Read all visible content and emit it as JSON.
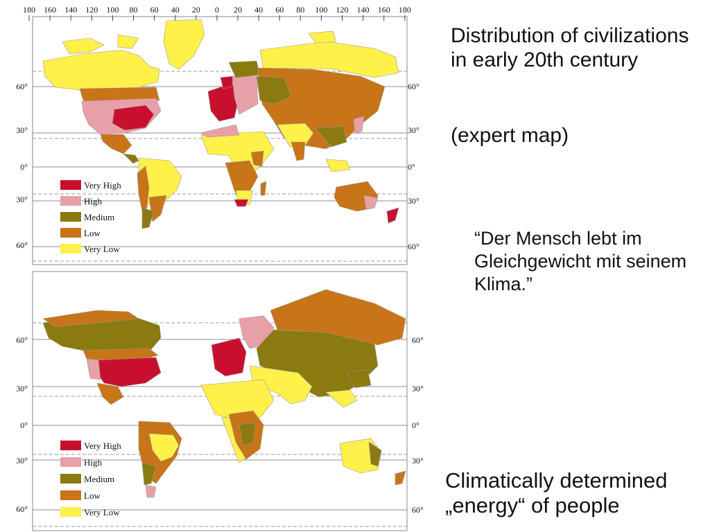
{
  "colors": {
    "very_high": "#c8102e",
    "high": "#e8a0a8",
    "medium": "#8b7a10",
    "low": "#c87418",
    "very_low": "#fff04a",
    "outline": "#9a9a9a",
    "gridline": "#666666"
  },
  "longitude_labels": [
    "180",
    "160",
    "140",
    "120",
    "100",
    "80",
    "60",
    "40",
    "20",
    "0",
    "20",
    "40",
    "60",
    "80",
    "100",
    "120",
    "140",
    "160",
    "180"
  ],
  "map_top": {
    "latitude_labels_left": [
      "60°",
      "30°",
      "0°",
      "30°",
      "60°"
    ],
    "latitude_labels_right": [
      "60°",
      "30°",
      "0°",
      "30°",
      "60°"
    ],
    "legend": [
      {
        "label": "Very High",
        "level": "very_high"
      },
      {
        "label": "High",
        "level": "high"
      },
      {
        "label": "Medium",
        "level": "medium"
      },
      {
        "label": "Low",
        "level": "low"
      },
      {
        "label": "Very Low",
        "level": "very_low"
      }
    ]
  },
  "map_bottom": {
    "latitude_labels_left": [
      "60°",
      "30°",
      "0°",
      "30°",
      "60°"
    ],
    "latitude_labels_right": [
      "60°",
      "30°",
      "0°",
      "30°",
      "60°"
    ],
    "legend": [
      {
        "label": "Very High",
        "level": "very_high"
      },
      {
        "label": "High",
        "level": "high"
      },
      {
        "label": "Medium",
        "level": "medium"
      },
      {
        "label": "Low",
        "level": "low"
      },
      {
        "label": "Very Low",
        "level": "very_low"
      }
    ]
  },
  "text": {
    "title": "Distribution of civilizations in early 20th century",
    "subtitle": "(expert map)",
    "quote": "“Der Mensch lebt im Gleichgewicht mit seinem Klima.”",
    "bottom_caption": "Climatically determined „energy“ of people"
  }
}
